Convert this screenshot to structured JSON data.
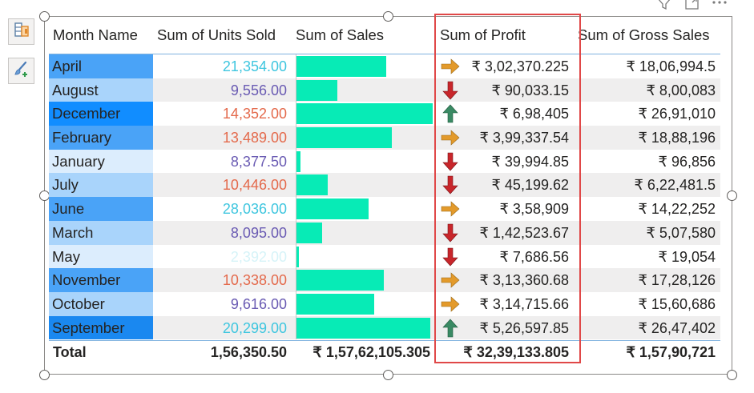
{
  "headers": {
    "month": "Month Name",
    "units": "Sum of Units Sold",
    "sales": "Sum of Sales",
    "profit": "Sum of Profit",
    "gross": "Sum of Gross Sales"
  },
  "rows": [
    {
      "month": "April",
      "units": "21,354.00",
      "sales": 0.66,
      "trend": "side",
      "profit": "₹ 3,02,370.225",
      "gross": "₹ 18,06,994.5",
      "month_color": "#4aa3f7",
      "units_color": "#3fc6df"
    },
    {
      "month": "August",
      "units": "9,556.00",
      "sales": 0.3,
      "trend": "down",
      "profit": "₹ 90,033.15",
      "gross": "₹ 8,00,083",
      "month_color": "#a9d4fb",
      "units_color": "#6a5bb3"
    },
    {
      "month": "December",
      "units": "14,352.00",
      "sales": 1.0,
      "trend": "up",
      "profit": "₹ 6,98,405",
      "gross": "₹ 26,91,010",
      "month_color": "#118dff",
      "units_color": "#e46a4c"
    },
    {
      "month": "February",
      "units": "13,489.00",
      "sales": 0.7,
      "trend": "side",
      "profit": "₹ 3,99,337.54",
      "gross": "₹ 18,88,196",
      "month_color": "#4aa3f7",
      "units_color": "#e46a4c"
    },
    {
      "month": "January",
      "units": "8,377.50",
      "sales": 0.03,
      "trend": "down",
      "profit": "₹ 39,994.85",
      "gross": "₹ 96,856",
      "month_color": "#dcedfd",
      "units_color": "#6a5bb3"
    },
    {
      "month": "July",
      "units": "10,446.00",
      "sales": 0.23,
      "trend": "down",
      "profit": "₹ 45,199.62",
      "gross": "₹ 6,22,481.5",
      "month_color": "#a9d4fb",
      "units_color": "#e46a4c"
    },
    {
      "month": "June",
      "units": "28,036.00",
      "sales": 0.53,
      "trend": "side",
      "profit": "₹ 3,58,909",
      "gross": "₹ 14,22,252",
      "month_color": "#4aa3f7",
      "units_color": "#3fc6df"
    },
    {
      "month": "March",
      "units": "8,095.00",
      "sales": 0.19,
      "trend": "down",
      "profit": "₹ 1,42,523.67",
      "gross": "₹ 5,07,580",
      "month_color": "#a9d4fb",
      "units_color": "#6a5bb3"
    },
    {
      "month": "May",
      "units": "2,392.00",
      "sales": 0.02,
      "trend": "down",
      "profit": "₹ 7,686.56",
      "gross": "₹ 19,054",
      "month_color": "#dcedfd",
      "units_color": "#d6f3f8"
    },
    {
      "month": "November",
      "units": "10,338.00",
      "sales": 0.64,
      "trend": "side",
      "profit": "₹ 3,13,360.68",
      "gross": "₹ 17,28,126",
      "month_color": "#4aa3f7",
      "units_color": "#e46a4c"
    },
    {
      "month": "October",
      "units": "9,616.00",
      "sales": 0.57,
      "trend": "side",
      "profit": "₹ 3,14,715.66",
      "gross": "₹ 15,60,686",
      "month_color": "#a9d4fb",
      "units_color": "#6a5bb3"
    },
    {
      "month": "September",
      "units": "20,299.00",
      "sales": 0.98,
      "trend": "up",
      "profit": "₹ 5,26,597.85",
      "gross": "₹ 26,47,402",
      "month_color": "#1a88f0",
      "units_color": "#3fc6df"
    }
  ],
  "total": {
    "label": "Total",
    "units": "1,56,350.50",
    "sales": "₹ 1,57,62,105.305",
    "profit": "₹ 32,39,133.805",
    "gross": "₹ 1,57,90,721"
  },
  "colors": {
    "sales_bar": "#07ebb6",
    "arrow_side": "#e39a2b",
    "arrow_down": "#c8262b",
    "arrow_up": "#3a8a64",
    "highlight": "#e04848"
  },
  "icons": {
    "tool1": "table-format-icon",
    "tool2": "paintbrush-add-icon",
    "filter": "filter-icon",
    "focus": "focus-mode-icon",
    "more": "more-options-icon"
  }
}
